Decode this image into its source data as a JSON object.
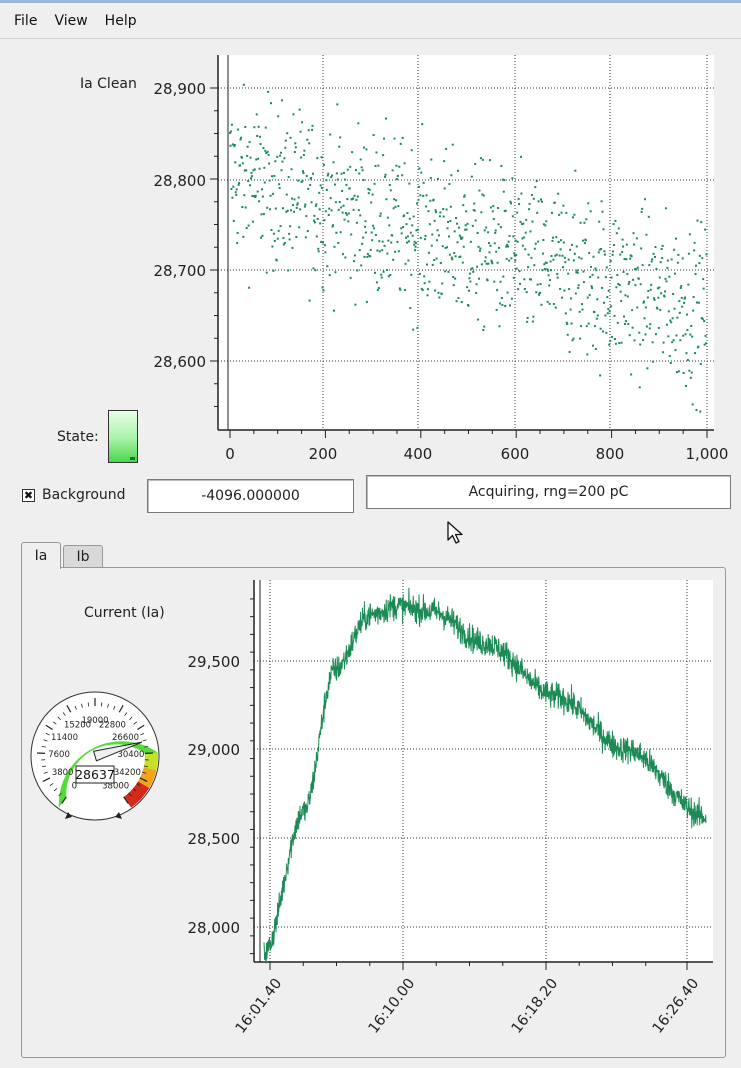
{
  "menu": {
    "items": [
      "File",
      "View",
      "Help"
    ]
  },
  "top_chart_label": "Ia Clean",
  "state_label": "State:",
  "background": {
    "label": "Background",
    "checked": true,
    "check_glyph": "✖"
  },
  "background_value": "-4096.000000",
  "status_text": "Acquiring, rng=200 pC",
  "tabs": [
    "Ia",
    "Ib"
  ],
  "active_tab": "Ia",
  "current_label": "Current (Ia)",
  "colors": {
    "series": "#1b8a55",
    "led": "#49d64d",
    "gauge_green": "#54dc3a",
    "gauge_red": "#d32a1a"
  },
  "gauge": {
    "value": 28637,
    "display": "28637",
    "min": 0,
    "max": 38000,
    "tick_labels": [
      "0",
      "3800",
      "7600",
      "11400",
      "15200",
      "19000",
      "22800",
      "26600",
      "30400",
      "34200",
      "38000"
    ]
  },
  "chart_data": [
    {
      "type": "scatter",
      "title": "",
      "ylabel": "Ia Clean",
      "xlabel": "",
      "xlim": [
        0,
        1000
      ],
      "ylim": [
        28530,
        28940
      ],
      "x_ticks": [
        "0",
        "200",
        "400",
        "600",
        "800",
        "1,000"
      ],
      "y_ticks": [
        "28,900",
        "28,800",
        "28,700",
        "28,600"
      ],
      "grid": true,
      "trend": {
        "start": 28805,
        "end": 28655,
        "noise": 45,
        "points": 1000
      }
    },
    {
      "type": "line",
      "title": "",
      "ylabel": "Current (Ia)",
      "xlabel": "",
      "y_ticks": [
        "29,500",
        "29,000",
        "28,500",
        "28,000"
      ],
      "ylim": [
        27830,
        29930
      ],
      "x_ticks": [
        "16:01.40",
        "16:10.00",
        "16:18.20",
        "16:26.40"
      ],
      "grid": true,
      "shape": [
        {
          "t": 0.0,
          "v": 27850
        },
        {
          "t": 0.09,
          "v": 28650
        },
        {
          "t": 0.16,
          "v": 29450
        },
        {
          "t": 0.24,
          "v": 29760
        },
        {
          "t": 0.3,
          "v": 29810
        },
        {
          "t": 0.38,
          "v": 29780
        },
        {
          "t": 0.5,
          "v": 29600
        },
        {
          "t": 0.66,
          "v": 29300
        },
        {
          "t": 0.82,
          "v": 29000
        },
        {
          "t": 1.0,
          "v": 28620
        }
      ]
    }
  ]
}
